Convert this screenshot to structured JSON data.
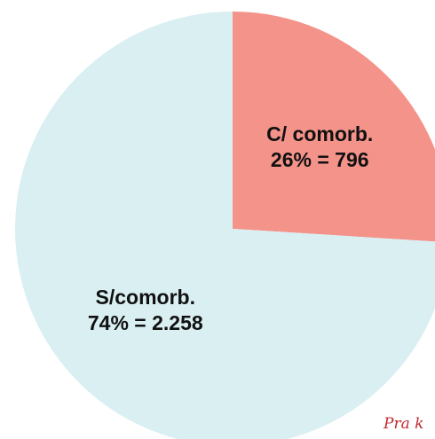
{
  "chart_data": {
    "type": "pie",
    "categories": [
      "C/ comorb.",
      "S/comorb."
    ],
    "values": [
      26,
      74
    ],
    "value_labels": [
      "26% = 796",
      "74% = 2.258"
    ],
    "colors": [
      "#f4938a",
      "#d9eff2"
    ],
    "annotation": "Pra k"
  }
}
